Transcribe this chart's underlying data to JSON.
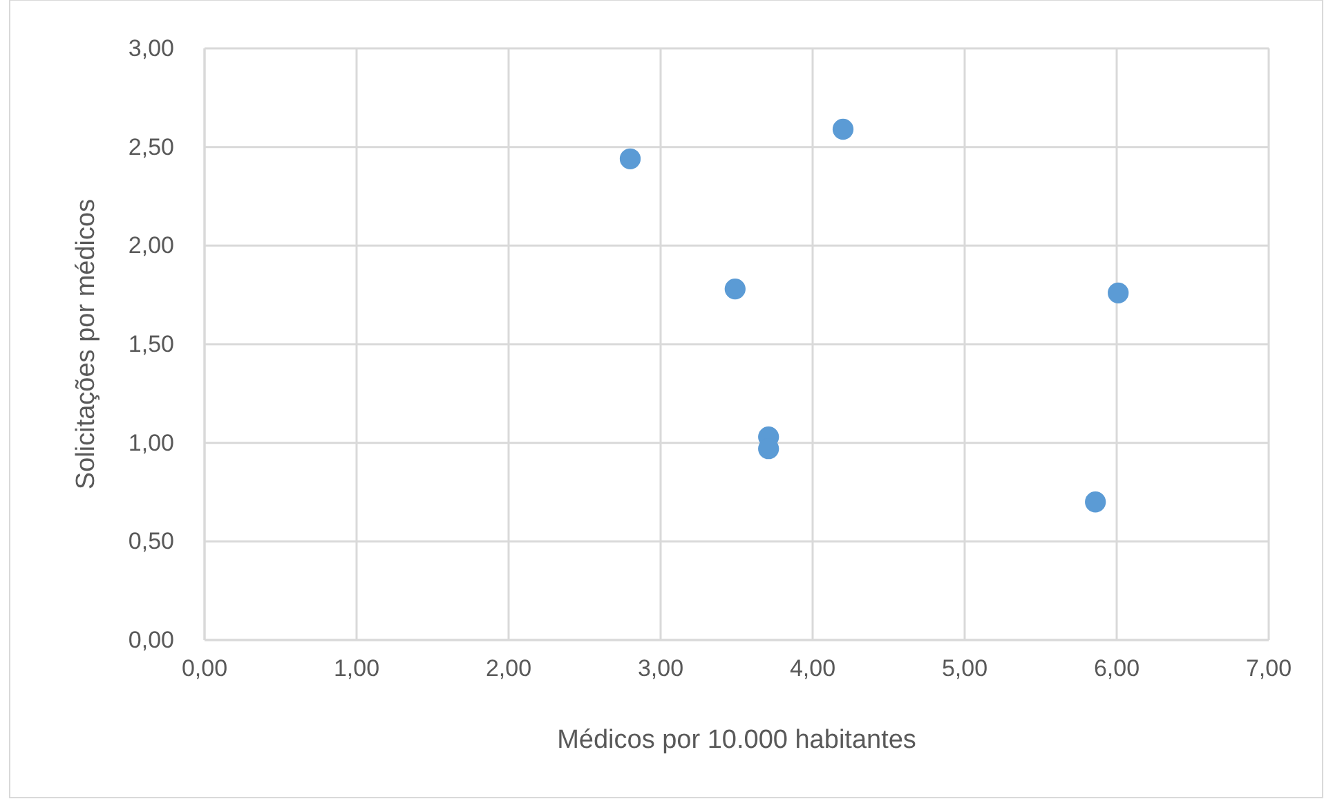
{
  "chart_data": {
    "type": "scatter",
    "xlabel": "Médicos por 10.000 habitantes",
    "ylabel": "Solicitações por médicos",
    "x": [
      2.8,
      4.2,
      3.49,
      3.71,
      3.71,
      6.01,
      5.86
    ],
    "values": [
      2.44,
      2.59,
      1.78,
      1.03,
      0.97,
      1.76,
      0.7
    ],
    "color": "#5b9bd5",
    "marker": "circle",
    "grid": true,
    "xlim": [
      0,
      7
    ],
    "xticks": [
      {
        "value": 0,
        "label": "0,00"
      },
      {
        "value": 1,
        "label": "1,00"
      },
      {
        "value": 2,
        "label": "2,00"
      },
      {
        "value": 3,
        "label": "3,00"
      },
      {
        "value": 4,
        "label": "4,00"
      },
      {
        "value": 5,
        "label": "5,00"
      },
      {
        "value": 6,
        "label": "6,00"
      },
      {
        "value": 7,
        "label": "7,00"
      }
    ],
    "ylim": [
      0,
      3
    ],
    "yticks": [
      {
        "value": 0,
        "label": "0,00"
      },
      {
        "value": 0.5,
        "label": "0,50"
      },
      {
        "value": 1,
        "label": "1,00"
      },
      {
        "value": 1.5,
        "label": "1,50"
      },
      {
        "value": 2,
        "label": "2,00"
      },
      {
        "value": 2.5,
        "label": "2,50"
      },
      {
        "value": 3,
        "label": "3,00"
      }
    ]
  }
}
